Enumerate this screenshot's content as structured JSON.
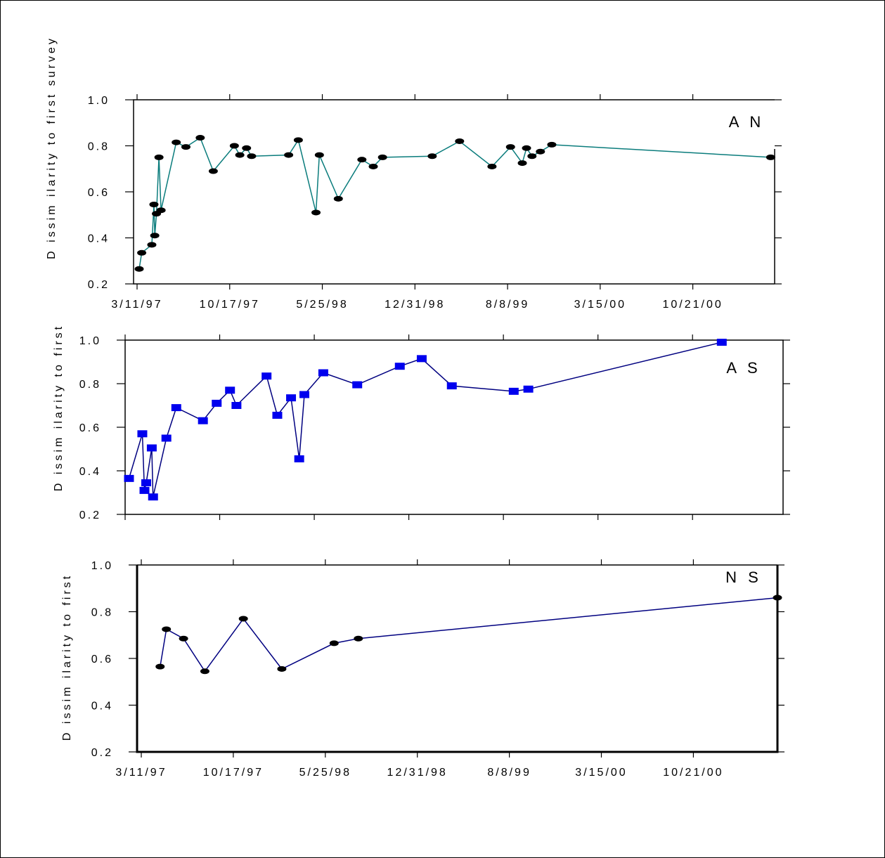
{
  "chart_data": [
    {
      "type": "line",
      "title": "",
      "panel_label": "A N",
      "ylabel": "D issim ilarity to first survey",
      "xlabel": "",
      "ylim": [
        0.2,
        1.0
      ],
      "yticks": [
        "0.2",
        "0.4",
        "0.6",
        "0.8",
        "1.0"
      ],
      "xticks": [
        "3/11/97",
        "10/17/97",
        "5/25/98",
        "12/31/98",
        "8/8/99",
        "3/15/00",
        "10/21/00"
      ],
      "x_start": "1997-03-11",
      "x_end": "2001-04-30",
      "marker": "ellipse",
      "marker_color": "#000000",
      "line_color": "#0a7c7c",
      "series": [
        {
          "points": [
            {
              "x": "1997-03-16",
              "y": 0.265
            },
            {
              "x": "1997-03-22",
              "y": 0.335
            },
            {
              "x": "1997-04-15",
              "y": 0.37
            },
            {
              "x": "1997-04-20",
              "y": 0.545
            },
            {
              "x": "1997-04-22",
              "y": 0.41
            },
            {
              "x": "1997-04-26",
              "y": 0.505
            },
            {
              "x": "1997-05-02",
              "y": 0.75
            },
            {
              "x": "1997-05-07",
              "y": 0.52
            },
            {
              "x": "1997-06-12",
              "y": 0.815
            },
            {
              "x": "1997-07-05",
              "y": 0.795
            },
            {
              "x": "1997-08-08",
              "y": 0.835
            },
            {
              "x": "1997-09-08",
              "y": 0.69
            },
            {
              "x": "1997-10-28",
              "y": 0.8
            },
            {
              "x": "1997-11-10",
              "y": 0.76
            },
            {
              "x": "1997-11-26",
              "y": 0.79
            },
            {
              "x": "1997-12-08",
              "y": 0.755
            },
            {
              "x": "1998-03-06",
              "y": 0.76
            },
            {
              "x": "1998-03-29",
              "y": 0.825
            },
            {
              "x": "1998-05-10",
              "y": 0.51
            },
            {
              "x": "1998-05-18",
              "y": 0.76
            },
            {
              "x": "1998-07-02",
              "y": 0.57
            },
            {
              "x": "1998-08-27",
              "y": 0.74
            },
            {
              "x": "1998-09-23",
              "y": 0.71
            },
            {
              "x": "1998-10-15",
              "y": 0.75
            },
            {
              "x": "1999-02-10",
              "y": 0.755
            },
            {
              "x": "1999-04-16",
              "y": 0.82
            },
            {
              "x": "1999-07-02",
              "y": 0.71
            },
            {
              "x": "1999-08-15",
              "y": 0.795
            },
            {
              "x": "1999-09-12",
              "y": 0.725
            },
            {
              "x": "1999-09-22",
              "y": 0.79
            },
            {
              "x": "1999-10-05",
              "y": 0.755
            },
            {
              "x": "1999-10-25",
              "y": 0.775
            },
            {
              "x": "1999-11-21",
              "y": 0.805
            },
            {
              "x": "2001-04-24",
              "y": 0.75
            }
          ]
        }
      ]
    },
    {
      "type": "line",
      "title": "",
      "panel_label": "A S",
      "ylabel": "D issim ilarity to first",
      "xlabel": "",
      "ylim": [
        0.2,
        1.0
      ],
      "yticks": [
        "0.2",
        "0.4",
        "0.6",
        "0.8",
        "1.0"
      ],
      "xticks": [],
      "x_start": "1997-03-11",
      "x_end": "2001-04-30",
      "marker": "rect",
      "marker_color": "#0000ee",
      "line_color": "#000080",
      "series": [
        {
          "points": [
            {
              "x": "1997-03-20",
              "y": 0.365
            },
            {
              "x": "1997-04-20",
              "y": 0.57
            },
            {
              "x": "1997-04-25",
              "y": 0.31
            },
            {
              "x": "1997-04-29",
              "y": 0.345
            },
            {
              "x": "1997-05-12",
              "y": 0.505
            },
            {
              "x": "1997-05-15",
              "y": 0.28
            },
            {
              "x": "1997-06-15",
              "y": 0.55
            },
            {
              "x": "1997-07-08",
              "y": 0.69
            },
            {
              "x": "1997-09-08",
              "y": 0.63
            },
            {
              "x": "1997-10-10",
              "y": 0.71
            },
            {
              "x": "1997-11-10",
              "y": 0.77
            },
            {
              "x": "1997-11-25",
              "y": 0.7
            },
            {
              "x": "1998-02-03",
              "y": 0.835
            },
            {
              "x": "1998-02-28",
              "y": 0.655
            },
            {
              "x": "1998-04-01",
              "y": 0.735
            },
            {
              "x": "1998-04-20",
              "y": 0.455
            },
            {
              "x": "1998-05-02",
              "y": 0.75
            },
            {
              "x": "1998-06-15",
              "y": 0.85
            },
            {
              "x": "1998-09-02",
              "y": 0.795
            },
            {
              "x": "1998-12-10",
              "y": 0.88
            },
            {
              "x": "1999-01-30",
              "y": 0.915
            },
            {
              "x": "1999-04-10",
              "y": 0.79
            },
            {
              "x": "1999-09-01",
              "y": 0.765
            },
            {
              "x": "1999-10-05",
              "y": 0.775
            },
            {
              "x": "2000-12-28",
              "y": 0.99
            }
          ]
        }
      ]
    },
    {
      "type": "line",
      "title": "",
      "panel_label": "N S",
      "ylabel": "D issim ilarity to first",
      "xlabel": "",
      "ylim": [
        0.2,
        1.0
      ],
      "yticks": [
        "0.2",
        "0.4",
        "0.6",
        "0.8",
        "1.0"
      ],
      "xticks": [
        "3/11/97",
        "10/17/97",
        "5/25/98",
        "12/31/98",
        "8/8/99",
        "3/15/00",
        "10/21/00"
      ],
      "x_start": "1997-03-11",
      "x_end": "2001-05-10",
      "marker": "ellipse",
      "marker_color": "#000000",
      "line_color": "#000080",
      "series": [
        {
          "points": [
            {
              "x": "1997-04-25",
              "y": 0.565
            },
            {
              "x": "1997-05-10",
              "y": 0.725
            },
            {
              "x": "1997-06-20",
              "y": 0.685
            },
            {
              "x": "1997-08-10",
              "y": 0.545
            },
            {
              "x": "1997-11-10",
              "y": 0.77
            },
            {
              "x": "1998-02-10",
              "y": 0.555
            },
            {
              "x": "1998-06-15",
              "y": 0.665
            },
            {
              "x": "1998-08-12",
              "y": 0.685
            },
            {
              "x": "2001-05-10",
              "y": 0.86
            }
          ]
        }
      ]
    }
  ]
}
